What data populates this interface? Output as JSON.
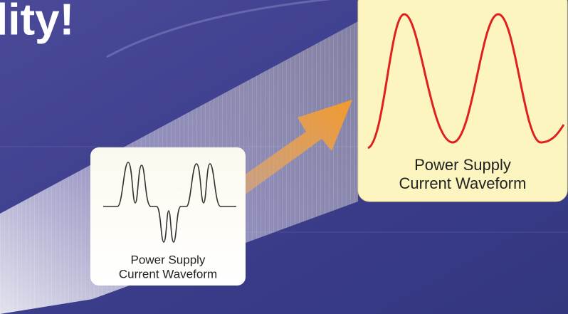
{
  "headline": "lity!",
  "small_panel": {
    "label_lines": [
      "Power Supply",
      "Current Waveform"
    ]
  },
  "large_panel": {
    "label_lines": [
      "Power Supply",
      "Current Waveform"
    ]
  }
}
